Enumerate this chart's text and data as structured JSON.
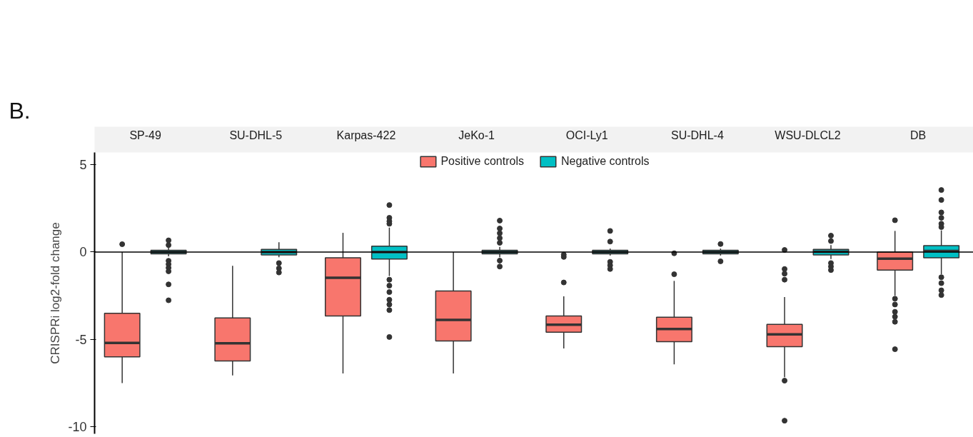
{
  "chart_data": {
    "type": "box",
    "ylabel": "CRISPRi log2-fold change",
    "annotations": [
      "B."
    ],
    "categories": [
      "SP-49",
      "SU-DHL-5",
      "Karpas-422",
      "JeKo-1",
      "OCI-Ly1",
      "SU-DHL-4",
      "WSU-DLCL2",
      "DB"
    ],
    "ylim": [
      -10.4,
      5.7
    ],
    "yticks": [
      -10,
      -5,
      0,
      5
    ],
    "grid": false,
    "legend": "top",
    "ref_lines": [
      {
        "axis": "y",
        "value": 0
      }
    ],
    "series": [
      {
        "name": "Positive controls",
        "color": "#f8766d",
        "boxes": [
          {
            "low": -7.5,
            "q1": -6.0,
            "median": -5.2,
            "q3": -3.5,
            "high": 0.0,
            "outliers": [
              0.45
            ]
          },
          {
            "low": -7.06,
            "q1": -6.23,
            "median": -5.22,
            "q3": -3.77,
            "high": -0.79
          },
          {
            "low": -6.95,
            "q1": -3.66,
            "median": -1.47,
            "q3": -0.33,
            "high": 1.1
          },
          {
            "low": -6.95,
            "q1": -5.09,
            "median": -3.88,
            "q3": -2.23,
            "high": 0.0
          },
          {
            "low": -5.52,
            "q1": -4.59,
            "median": -4.16,
            "q3": -3.66,
            "high": -2.53,
            "outliers": [
              -0.15,
              -0.28,
              -1.74
            ]
          },
          {
            "low": -6.43,
            "q1": -5.13,
            "median": -4.4,
            "q3": -3.73,
            "high": -1.65,
            "outliers": [
              -0.07,
              -1.27
            ]
          },
          {
            "low": -7.16,
            "q1": -5.41,
            "median": -4.71,
            "q3": -4.14,
            "high": -2.57,
            "outliers": [
              0.12,
              -0.97,
              -1.24,
              -1.58,
              -7.36,
              -9.65
            ]
          },
          {
            "low": -2.49,
            "q1": -1.03,
            "median": -0.38,
            "q3": 0.0,
            "high": 1.21,
            "outliers": [
              1.82,
              -2.67,
              -3.0,
              -3.42,
              -3.7,
              -3.99,
              -5.56
            ]
          }
        ]
      },
      {
        "name": "Negative controls",
        "color": "#00bfc4",
        "boxes": [
          {
            "low": -0.25,
            "q1": -0.1,
            "median": 0.0,
            "q3": 0.1,
            "high": 0.25,
            "outliers": [
              0.67,
              0.4,
              -0.5,
              -0.7,
              -0.9,
              -1.1,
              -1.85,
              -2.76
            ]
          },
          {
            "low": -0.3,
            "q1": -0.16,
            "median": 0.0,
            "q3": 0.15,
            "high": 0.56,
            "outliers": [
              -0.63,
              -0.93,
              -1.17
            ]
          },
          {
            "low": -1.37,
            "q1": -0.4,
            "median": 0.0,
            "q3": 0.34,
            "high": 1.4,
            "outliers": [
              2.69,
              1.96,
              1.76,
              1.62,
              -1.58,
              -1.92,
              -2.29,
              -2.73,
              -3.0,
              -3.32,
              -4.86
            ]
          },
          {
            "low": -0.3,
            "q1": -0.1,
            "median": 0.0,
            "q3": 0.1,
            "high": 0.3,
            "outliers": [
              1.8,
              1.35,
              1.08,
              0.8,
              0.53,
              -0.49,
              -0.83
            ]
          },
          {
            "low": -0.2,
            "q1": -0.1,
            "median": 0.0,
            "q3": 0.1,
            "high": 0.2,
            "outliers": [
              1.21,
              0.6,
              -0.56,
              -0.76,
              -0.97
            ]
          },
          {
            "low": -0.2,
            "q1": -0.1,
            "median": 0.0,
            "q3": 0.1,
            "high": 0.2,
            "outliers": [
              0.46,
              -0.53
            ]
          },
          {
            "low": -0.4,
            "q1": -0.16,
            "median": 0.02,
            "q3": 0.15,
            "high": 0.4,
            "outliers": [
              0.94,
              0.63,
              -0.63,
              -0.83,
              -1.03
            ]
          },
          {
            "low": -1.27,
            "q1": -0.33,
            "median": 0.06,
            "q3": 0.37,
            "high": 1.24,
            "outliers": [
              3.55,
              2.98,
              2.27,
              1.96,
              1.62,
              1.43,
              -1.44,
              -1.78,
              -2.19,
              -2.46
            ]
          }
        ]
      }
    ]
  }
}
